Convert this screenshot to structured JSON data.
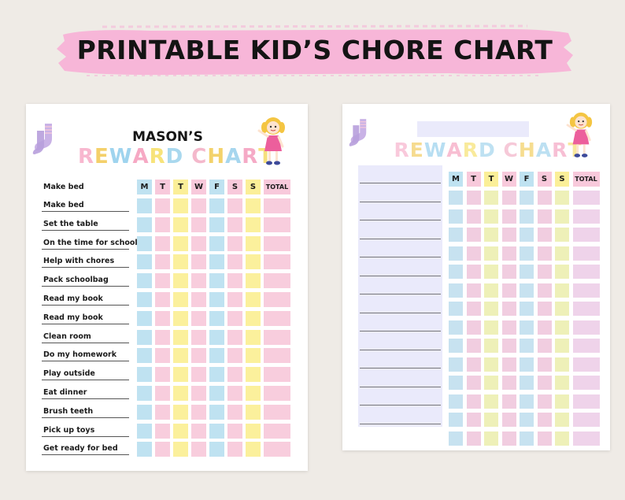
{
  "banner": {
    "title": "PRINTABLE KID’S CHORE CHART",
    "color": "#f7b6d8"
  },
  "left_chart": {
    "name": "MASON’S",
    "title": "REWARD CHART",
    "day_headers": [
      "M",
      "T",
      "T",
      "W",
      "F",
      "S",
      "S"
    ],
    "total_header": "TOTAL",
    "chores": [
      "Make bed",
      "Set the table",
      "On the time for school",
      "Help with chores",
      "Pack schoolbag",
      "Read my book",
      "Read my book",
      "Clean room",
      "Do my homework",
      "Play outside",
      "Eat dinner",
      "Brush teeth",
      "Pick up toys",
      "Get ready for bed"
    ]
  },
  "right_chart": {
    "title": "REWARD CHART",
    "day_headers": [
      "M",
      "T",
      "T",
      "W",
      "F",
      "S",
      "S"
    ],
    "total_header": "TOTAL",
    "rows": 14
  },
  "colors": {
    "title_letters": [
      "#f8b7cf",
      "#f4d06a",
      "#9fd4ee",
      "#f6a9c4",
      "#f7e37a",
      "#a9d8ee",
      "#f4b8cb",
      "#f3d26b",
      "#a6d6ee",
      "#f5aac6",
      "#f6e07c",
      "#aad6ee"
    ],
    "header_colors": [
      "#bfe2f1",
      "#f8c9db",
      "#fbef98",
      "#f8c9db",
      "#bfe2f1",
      "#f8c9db",
      "#fbef98",
      "#f8c9db"
    ],
    "column_colors": [
      "#bfe2f1",
      "#f8cddd",
      "#fbf09c",
      "#f8cddd",
      "#bfe2f1",
      "#f8cddd",
      "#fbf09c",
      "#f8cddd"
    ],
    "column_colors_faded": [
      "#c7e2f0",
      "#f1cde0",
      "#eef0b8",
      "#f1cde0",
      "#c7e2f0",
      "#f1cde0",
      "#eef0b8",
      "#efd3ea"
    ]
  },
  "icons": [
    "socks-icon",
    "girl-illustration"
  ]
}
